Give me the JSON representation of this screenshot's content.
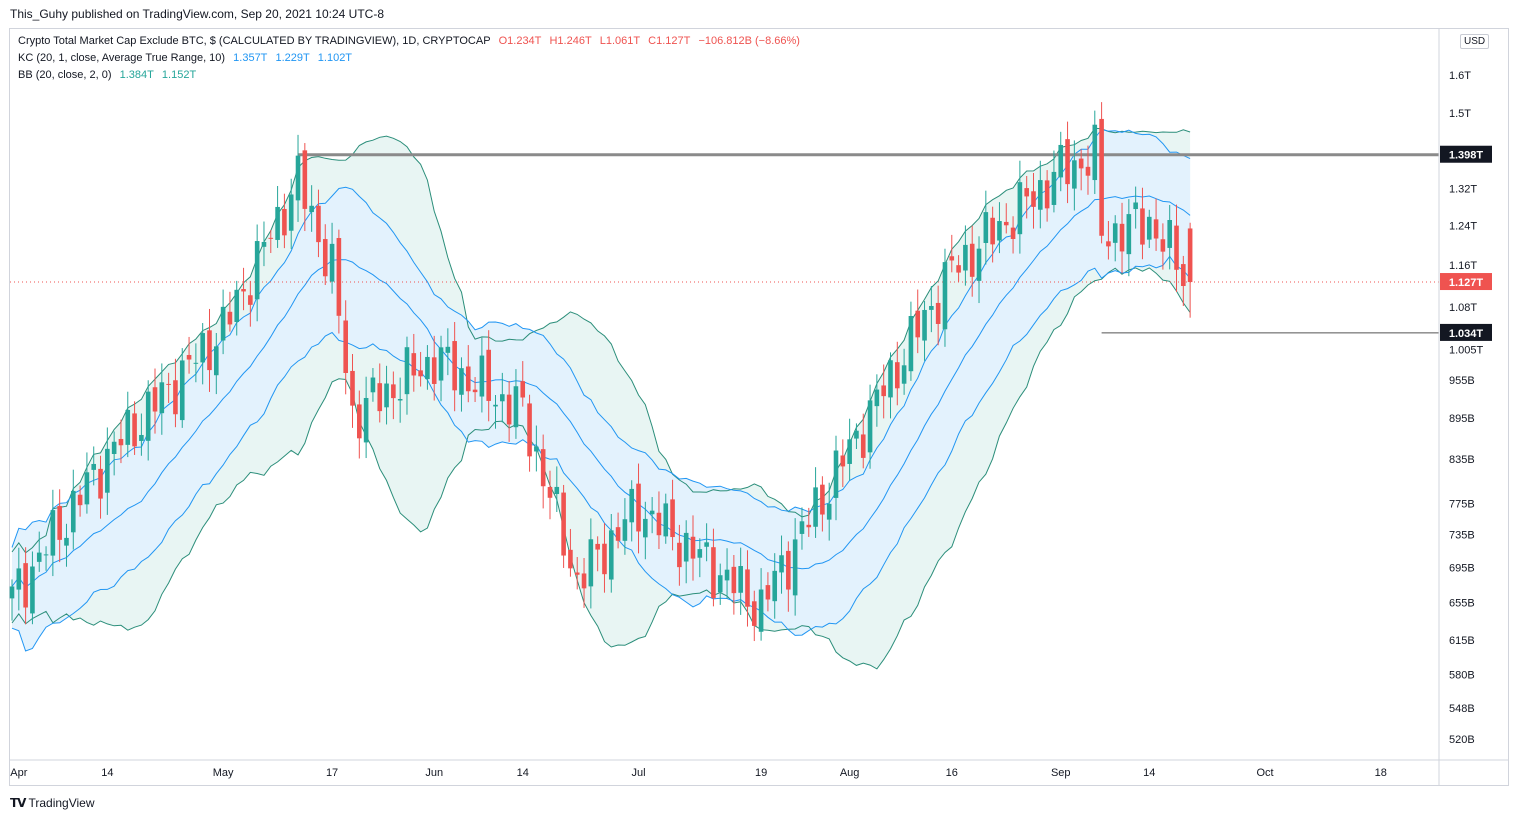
{
  "header": {
    "published": "This_Guhy published on TradingView.com, Sep 20, 2021 10:24 UTC-8"
  },
  "legend": {
    "symbol": "Crypto Total Market Cap Exclude BTC, $ (CALCULATED BY TRADINGVIEW), 1D, CRYPTOCAP",
    "open": "O1.234T",
    "high": "H1.246T",
    "low": "L1.061T",
    "close": "C1.127T",
    "change": "−106.812B (−8.66%)",
    "kc_label": "KC (20, 1, close, Average True Range, 10)",
    "kc_values": [
      "1.357T",
      "1.229T",
      "1.102T"
    ],
    "bb_label": "BB (20, close, 2, 0)",
    "bb_values": [
      "1.384T",
      "1.152T"
    ]
  },
  "currency_button": "USD",
  "footer": {
    "brand": "TradingView",
    "brand_icon": "tradingview-logo"
  },
  "colors": {
    "up": "#26a69a",
    "down": "#ef5350",
    "kc": "#2196f3",
    "kc_fill": "#e3f2fd",
    "bb": "#2b8e7a",
    "bb_fill": "#e8f5f3",
    "level": "#555555"
  },
  "chart_data": {
    "type": "candlestick",
    "scale": "log",
    "y_ticks": [
      "1.6T",
      "1.5T",
      "1.32T",
      "1.24T",
      "1.16T",
      "1.08T",
      "1.005T",
      "955B",
      "895B",
      "835B",
      "775B",
      "735B",
      "695B",
      "655B",
      "615B",
      "580B",
      "548B",
      "520B"
    ],
    "y_tick_values": [
      1600,
      1500,
      1320,
      1240,
      1160,
      1080,
      1005,
      955,
      895,
      835,
      775,
      735,
      695,
      655,
      615,
      580,
      548,
      520
    ],
    "x_ticks": [
      "Apr",
      "14",
      "May",
      "17",
      "Jun",
      "14",
      "Jul",
      "19",
      "Aug",
      "16",
      "Sep",
      "14",
      "Oct",
      "18"
    ],
    "x_tick_dates": [
      "2021-04-01",
      "2021-04-14",
      "2021-05-01",
      "2021-05-17",
      "2021-06-01",
      "2021-06-14",
      "2021-07-01",
      "2021-07-19",
      "2021-08-01",
      "2021-08-16",
      "2021-09-01",
      "2021-09-14",
      "2021-10-01",
      "2021-10-18"
    ],
    "dates": [
      "2021-03-31",
      "2021-04-14",
      "2021-05-01",
      "2021-05-12",
      "2021-05-17",
      "2021-05-20",
      "2021-06-01",
      "2021-06-14",
      "2021-06-22",
      "2021-07-01",
      "2021-07-19",
      "2021-07-21",
      "2021-08-01",
      "2021-08-16",
      "2021-09-01",
      "2021-09-06",
      "2021-09-07",
      "2021-09-14",
      "2021-09-20"
    ],
    "close": [
      660,
      840,
      1040,
      1340,
      1150,
      900,
      990,
      905,
      680,
      770,
      650,
      680,
      850,
      1150,
      1360,
      1398,
      1220,
      1250,
      1127
    ],
    "horizontal_levels": [
      {
        "label": "1.398T",
        "value": 1398,
        "from": "2021-05-12",
        "to": "end"
      },
      {
        "label": "1.034T",
        "value": 1034,
        "from": "2021-09-07",
        "to": "end"
      }
    ],
    "current_price": {
      "label": "1.127T",
      "value": 1127
    },
    "last_candle": {
      "open": 1234,
      "high": 1246,
      "low": 1061,
      "close": 1127
    },
    "indicators": {
      "kc": {
        "upper": 1357,
        "middle": 1229,
        "lower": 1102
      },
      "bb": {
        "upper": 1384,
        "lower": 1152
      }
    }
  }
}
